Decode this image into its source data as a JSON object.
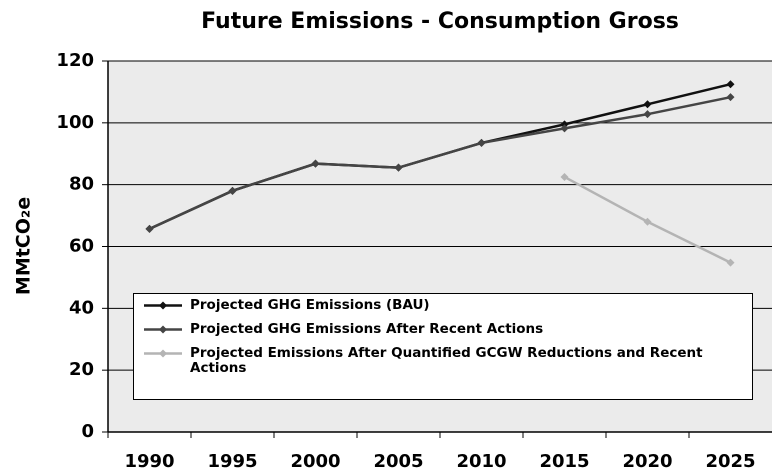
{
  "chart_data": {
    "type": "line",
    "title": "Future Emissions - Consumption Gross",
    "y_label": "MMtCO₂e",
    "categories": [
      "1990",
      "1995",
      "2000",
      "2005",
      "2010",
      "2015",
      "2020",
      "2025"
    ],
    "series": [
      {
        "name": "Projected GHG Emissions (BAU)",
        "color": "#111111",
        "values": [
          65.7,
          78,
          86.8,
          85.5,
          93.5,
          99.5,
          106,
          112.5
        ]
      },
      {
        "name": "Projected GHG Emissions After Recent Actions",
        "color": "#454545",
        "values": [
          65.7,
          78,
          86.8,
          85.5,
          93.5,
          98.2,
          102.8,
          108.3
        ]
      },
      {
        "name": "Projected Emissions After Quantified GCGW Reductions and Recent Actions",
        "color": "#b4b4b4",
        "values": [
          null,
          null,
          null,
          null,
          null,
          82.5,
          68,
          54.8
        ]
      }
    ],
    "ylim": [
      0,
      120
    ],
    "yticks": [
      0,
      20,
      40,
      60,
      80,
      100,
      120
    ],
    "grid": true
  }
}
